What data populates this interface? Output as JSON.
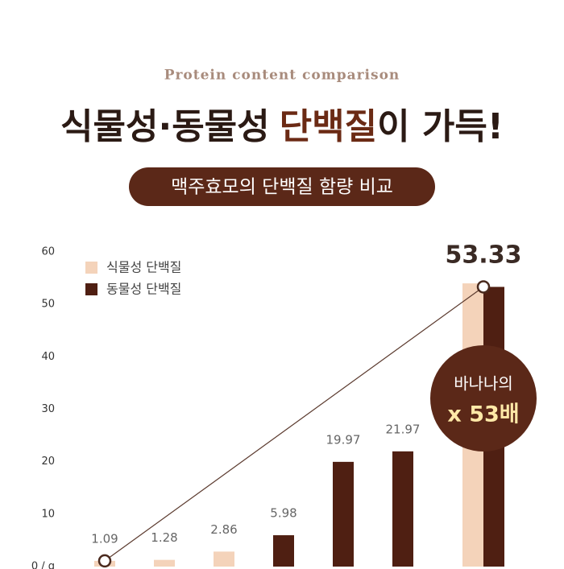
{
  "header": {
    "subtitle": "Protein content comparison",
    "title_parts": [
      "식물성·동물성",
      "단백질",
      "이 가득!"
    ],
    "badge": "맥주효모의 단백질 함량 비교"
  },
  "chart_data": {
    "type": "bar",
    "categories": [
      null,
      null,
      null,
      null,
      null,
      null,
      null
    ],
    "series": [
      {
        "name": "식물성 단백질",
        "color": "#f4d3ba",
        "values": [
          1.09,
          1.28,
          2.86,
          null,
          null,
          null,
          54
        ]
      },
      {
        "name": "동물성 단백질",
        "color": "#4f1f12",
        "values": [
          null,
          null,
          null,
          5.98,
          19.97,
          21.97,
          53.33
        ]
      }
    ],
    "ylim": [
      0,
      60
    ],
    "yticks": [
      {
        "value": 0,
        "label": "0 / g"
      },
      10,
      20,
      30,
      40,
      50,
      60
    ],
    "legend": "top-left",
    "annotations": [
      "바나나의",
      "x 53배"
    ]
  }
}
